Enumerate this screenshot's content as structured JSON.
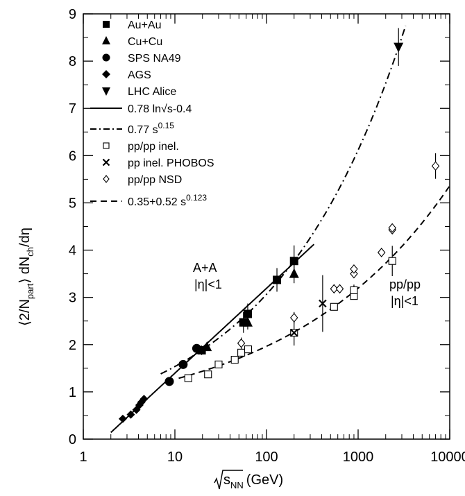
{
  "chart_data": {
    "type": "scatter",
    "xscale": "log",
    "xlim": [
      1,
      10000
    ],
    "ylim": [
      0,
      9
    ],
    "xticks": [
      "1",
      "10",
      "100",
      "1000",
      "10000"
    ],
    "yticks": [
      "0",
      "1",
      "2",
      "3",
      "4",
      "5",
      "6",
      "7",
      "8",
      "9"
    ],
    "xlabel": "√s_NN (GeV)",
    "ylabel": "⟨2/N_part⟩ dN_ch/dη",
    "legend_position": "top-left",
    "series": [
      {
        "name": "Au+Au",
        "marker": "filled-square",
        "points": [
          [
            19.6,
            1.88
          ],
          [
            56,
            2.47
          ],
          [
            62.4,
            2.65
          ],
          [
            130,
            3.37
          ],
          [
            200,
            3.77
          ]
        ]
      },
      {
        "name": "Cu+Cu",
        "marker": "filled-triangle-up",
        "points": [
          [
            22.4,
            1.95
          ],
          [
            62.4,
            2.47
          ],
          [
            200,
            3.5
          ]
        ]
      },
      {
        "name": "SPS NA49",
        "marker": "filled-circle",
        "points": [
          [
            8.7,
            1.22
          ],
          [
            12.3,
            1.58
          ],
          [
            17.3,
            1.92
          ]
        ]
      },
      {
        "name": "AGS",
        "marker": "filled-diamond",
        "points": [
          [
            2.7,
            0.43
          ],
          [
            3.3,
            0.52
          ],
          [
            3.8,
            0.62
          ],
          [
            4.1,
            0.72
          ],
          [
            4.3,
            0.78
          ],
          [
            4.6,
            0.85
          ]
        ]
      },
      {
        "name": "LHC Alice",
        "marker": "filled-triangle-down",
        "points": [
          [
            2760,
            8.3
          ]
        ]
      },
      {
        "name": "pp/pp inel.",
        "marker": "open-square",
        "points": [
          [
            14,
            1.29
          ],
          [
            23,
            1.37
          ],
          [
            30,
            1.58
          ],
          [
            45,
            1.68
          ],
          [
            53,
            1.83
          ],
          [
            63,
            1.9
          ],
          [
            200,
            2.25
          ],
          [
            546,
            2.8
          ],
          [
            900,
            3.03
          ],
          [
            900,
            3.15
          ],
          [
            2360,
            3.77
          ]
        ]
      },
      {
        "name": "pp inel. PHOBOS",
        "marker": "cross",
        "points": [
          [
            200,
            2.25
          ],
          [
            410,
            2.87
          ]
        ]
      },
      {
        "name": "pp/pp NSD",
        "marker": "open-diamond",
        "points": [
          [
            53,
            2.03
          ],
          [
            200,
            2.57
          ],
          [
            546,
            3.18
          ],
          [
            630,
            3.18
          ],
          [
            900,
            3.5
          ],
          [
            900,
            3.6
          ],
          [
            1800,
            3.95
          ],
          [
            2360,
            4.43
          ],
          [
            2360,
            4.47
          ],
          [
            7000,
            5.78
          ]
        ]
      }
    ],
    "curves": [
      {
        "name": "0.78 ln√s-0.4",
        "style": "solid",
        "x_range": [
          2,
          330
        ]
      },
      {
        "name": "0.77 s^0.15",
        "style": "dash-dot",
        "x_range": [
          7,
          3300
        ]
      },
      {
        "name": "0.35+0.52 s^0.123",
        "style": "dashed",
        "x_range": [
          11,
          10000
        ]
      }
    ],
    "annotations": [
      "A+A",
      "|η|<1",
      "pp/pp",
      "|η|<1"
    ]
  },
  "legend_labels": {
    "auau": "Au+Au",
    "cucu": "Cu+Cu",
    "sps": "SPS NA49",
    "ags": "AGS",
    "lhc": "LHC Alice",
    "fit_log": "0.78 ln√s-0.4",
    "fit_pow_base": "0.77 s",
    "fit_pow_exp": "0.15",
    "pp_inel": "pp/pp inel.",
    "phobos": "pp inel. PHOBOS",
    "pp_nsd": "pp/pp NSD",
    "fit_pp_base": "0.35+0.52 s",
    "fit_pp_exp": "0.123"
  },
  "annotation_text": {
    "aa": "A+A",
    "aa_eta": "|η|<1",
    "pp": "pp/pp",
    "pp_eta": "|η|<1"
  },
  "axis_text": {
    "x_sub": "NN",
    "x_unit": "(GeV)",
    "y_open": "⟨2/N",
    "y_sub1": "part",
    "y_mid": "⟩ dN",
    "y_sub2": "ch",
    "y_end": "/dη"
  }
}
